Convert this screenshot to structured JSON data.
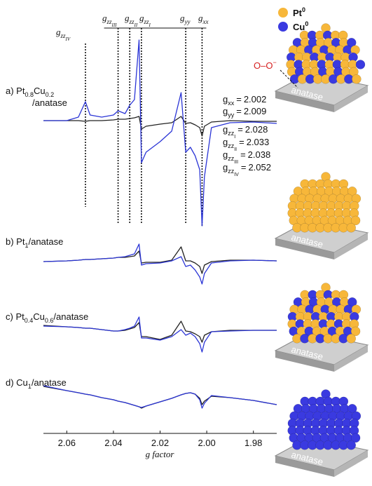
{
  "chart_data": {
    "type": "line",
    "xlabel": "g factor",
    "xlim": [
      2.07,
      1.97
    ],
    "xticks": [
      2.06,
      2.04,
      2.02,
      {
        "value": 2,
        "label": "2.00"
      },
      1.98
    ],
    "x": [
      2.07,
      2.06,
      2.055,
      2.052,
      2.05,
      2.045,
      2.04,
      2.038,
      2.035,
      2.033,
      2.031,
      2.029,
      2.028,
      2.026,
      2.02,
      2.015,
      2.011,
      2.009,
      2.007,
      2.005,
      2.003,
      2.002,
      2.001,
      1.998,
      1.99,
      1.98,
      1.97
    ],
    "panels": [
      {
        "label": [
          [
            {
              "text": "a) Pt"
            },
            {
              "sub": "0.8"
            },
            {
              "text": "Cu"
            },
            {
              "sub": "0.2"
            }
          ],
          [
            {
              "text": "/anatase"
            }
          ]
        ],
        "ylim": [
          -158,
          132
        ],
        "series": [
          {
            "color": "#222222",
            "values": [
              0,
              0,
              0,
              -1,
              0,
              0,
              1,
              2,
              2,
              3,
              4,
              6,
              -12,
              -8,
              -5,
              -3,
              6,
              -4,
              -3,
              -6,
              -10,
              -22,
              -8,
              -2,
              0,
              -1,
              -1
            ]
          },
          {
            "color": "#2b35d6",
            "values": [
              0,
              0,
              5,
              27,
              8,
              5,
              8,
              14,
              10,
              22,
              30,
              115,
              -60,
              -45,
              -30,
              -15,
              40,
              -45,
              -38,
              -50,
              -70,
              -150,
              -80,
              -10,
              -3,
              -2,
              -4
            ]
          }
        ]
      },
      {
        "label": [
          [
            {
              "text": "b) Pt"
            },
            {
              "sub": "1"
            },
            {
              "text": "/anatase"
            }
          ]
        ],
        "ylim": [
          -40,
          40
        ],
        "series": [
          {
            "color": "#222222",
            "values": [
              -3,
              -2,
              -1,
              0,
              0,
              1,
              2,
              3,
              3,
              4,
              5,
              12,
              -5,
              -4,
              -4,
              -1,
              18,
              -2,
              -2,
              -5,
              -10,
              -20,
              -8,
              -3,
              -1,
              -1,
              -2
            ]
          },
          {
            "color": "#2b35d6",
            "values": [
              -3,
              -2,
              -1,
              0,
              0,
              1,
              2,
              3,
              4,
              6,
              8,
              22,
              -8,
              -6,
              -5,
              -2,
              4,
              -10,
              -8,
              -15,
              -25,
              -35,
              -20,
              -5,
              -2,
              -1,
              -2
            ]
          }
        ]
      },
      {
        "label": [
          [
            {
              "text": "c) Pt"
            },
            {
              "sub": "0.4"
            },
            {
              "text": "Cu"
            },
            {
              "sub": "0.6"
            },
            {
              "text": "/anatase"
            }
          ]
        ],
        "ylim": [
          -40,
          40
        ],
        "series": [
          {
            "color": "#222222",
            "values": [
              6,
              4,
              3,
              2,
              2,
              0,
              -2,
              -2,
              -1,
              1,
              3,
              10,
              -10,
              -10,
              -14,
              -8,
              12,
              -2,
              -3,
              -6,
              -10,
              -18,
              -8,
              -3,
              -1,
              -1,
              -1
            ]
          },
          {
            "color": "#2b35d6",
            "values": [
              5,
              4,
              3,
              2,
              2,
              0,
              -2,
              -2,
              0,
              2,
              5,
              18,
              -12,
              -12,
              -15,
              -10,
              0,
              -8,
              -5,
              -10,
              -20,
              -32,
              -18,
              -3,
              -2,
              -1,
              -1
            ]
          }
        ]
      },
      {
        "label": [
          [
            {
              "text": "d) Cu"
            },
            {
              "sub": "1"
            },
            {
              "text": "/anatase"
            }
          ]
        ],
        "ylim": [
          -45,
          45
        ],
        "series": [
          {
            "color": "#222222",
            "values": [
              14,
              8,
              5,
              3,
              2,
              -2,
              -5,
              -7,
              -9,
              -11,
              -13,
              -15,
              -17,
              -14,
              -8,
              -3,
              2,
              4,
              5,
              3,
              -3,
              -12,
              -7,
              0,
              -2,
              -6,
              -12
            ]
          },
          {
            "color": "#2b35d6",
            "values": [
              15,
              8,
              5,
              3,
              2,
              -2,
              -5,
              -7,
              -9,
              -11,
              -13,
              -15,
              -16,
              -14,
              -8,
              -3,
              2,
              4,
              5,
              3,
              -5,
              -17,
              -10,
              1,
              -2,
              -6,
              -12
            ]
          }
        ]
      }
    ],
    "g_lines": [
      {
        "value": 2.052,
        "label": [
          {
            "text": "g"
          },
          {
            "sub": "zz"
          },
          {
            "subsub": "IV"
          }
        ]
      },
      {
        "value": 2.038,
        "label": [
          {
            "text": "g"
          },
          {
            "sub": "zz"
          },
          {
            "subsub": "III"
          }
        ]
      },
      {
        "value": 2.033,
        "label": [
          {
            "text": "g"
          },
          {
            "sub": "zz"
          },
          {
            "subsub": "II"
          }
        ]
      },
      {
        "value": 2.028,
        "label": [
          {
            "text": "g"
          },
          {
            "sub": "zz"
          },
          {
            "subsub": "I"
          }
        ]
      },
      {
        "value": 2.009,
        "label": [
          {
            "text": "g"
          },
          {
            "sub": "yy"
          }
        ]
      },
      {
        "value": 2.002,
        "label": [
          {
            "text": "g"
          },
          {
            "sub": "xx"
          }
        ]
      }
    ],
    "assignments": [
      {
        "label": [
          {
            "text": "g"
          },
          {
            "sub": "xx"
          },
          {
            "text": "="
          }
        ],
        "value": 2.002
      },
      {
        "label": [
          {
            "text": "g"
          },
          {
            "sub": "yy"
          },
          {
            "text": "="
          }
        ],
        "value": 2.009
      },
      {
        "label": [
          {
            "text": "g"
          },
          {
            "sub": "zz"
          },
          {
            "subsub": "I"
          },
          {
            "text": "="
          }
        ],
        "value": 2.028
      },
      {
        "label": [
          {
            "text": "g"
          },
          {
            "sub": "zz"
          },
          {
            "subsub": "II"
          },
          {
            "text": "="
          }
        ],
        "value": 2.033
      },
      {
        "label": [
          {
            "text": "g"
          },
          {
            "sub": "zz"
          },
          {
            "subsub": "III"
          },
          {
            "text": "="
          }
        ],
        "value": 2.038
      },
      {
        "label": [
          {
            "text": "g"
          },
          {
            "sub": "zz"
          },
          {
            "subsub": "IV"
          },
          {
            "text": "="
          }
        ],
        "value": 2.052
      }
    ]
  },
  "legend": [
    {
      "label": [
        {
          "text": "Pt"
        },
        {
          "sup": "0"
        }
      ],
      "color": "#f7b73a"
    },
    {
      "label": [
        {
          "text": "Cu"
        },
        {
          "sup": "0"
        }
      ],
      "color": "#3a3ae0"
    }
  ],
  "illustrations": {
    "support": "anatase",
    "oxygen": [
      {
        "text": "O–O"
      },
      {
        "sup": "−"
      }
    ]
  }
}
